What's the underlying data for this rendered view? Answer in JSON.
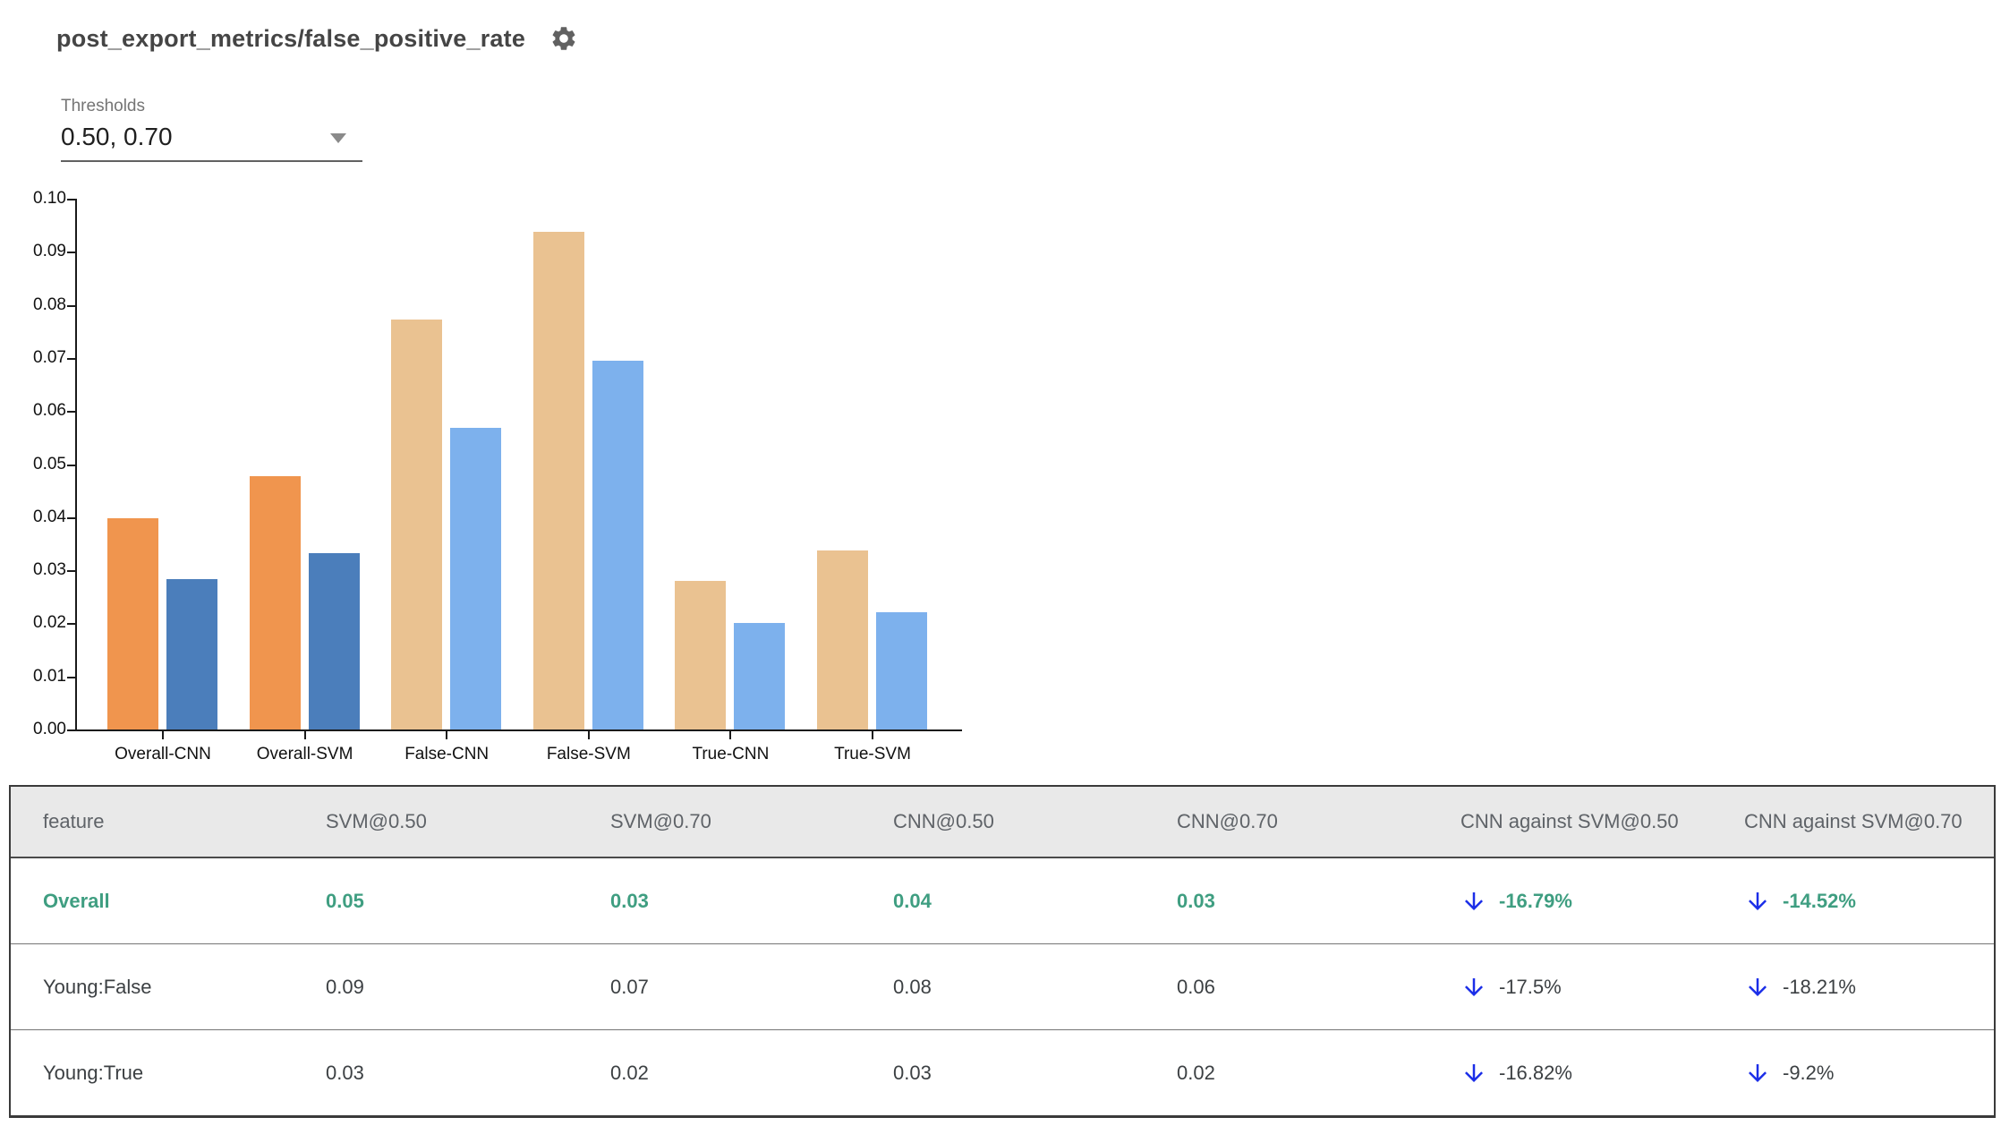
{
  "header": {
    "title": "post_export_metrics/false_positive_rate"
  },
  "icons": {
    "settings": "gear-icon ⚙",
    "caret_down": "caret-down-icon ▼",
    "delta_down": "arrow-down-icon ↓"
  },
  "thresholds": {
    "label": "Thresholds",
    "value": "0.50, 0.70"
  },
  "colors": {
    "orange_strong": "#F0954E",
    "blue_strong": "#4B7EBB",
    "orange_light": "#EAC291",
    "blue_light": "#7DB1ED",
    "highlight_green": "#3F9E81",
    "arrow_blue": "#1B2EE8",
    "header_bg": "#E9E9E9",
    "header_text": "#5F6368",
    "body_text": "#3C4043"
  },
  "chart_data": {
    "type": "bar",
    "title": "",
    "xlabel": "",
    "ylabel": "",
    "ylim": [
      0.0,
      0.1
    ],
    "ytick_step": 0.01,
    "grid": false,
    "legend": "none",
    "categories": [
      "Overall-CNN",
      "Overall-SVM",
      "False-CNN",
      "False-SVM",
      "True-CNN",
      "True-SVM"
    ],
    "series": [
      {
        "name": "threshold 0.50",
        "values": [
          0.0398,
          0.0477,
          0.0773,
          0.0938,
          0.028,
          0.0337
        ]
      },
      {
        "name": "threshold 0.70",
        "values": [
          0.0283,
          0.0332,
          0.0568,
          0.0695,
          0.0201,
          0.0221
        ]
      }
    ],
    "bar_colors": [
      [
        "#F0954E",
        "#4B7EBB"
      ],
      [
        "#F0954E",
        "#4B7EBB"
      ],
      [
        "#EAC291",
        "#7DB1ED"
      ],
      [
        "#EAC291",
        "#7DB1ED"
      ],
      [
        "#EAC291",
        "#7DB1ED"
      ],
      [
        "#EAC291",
        "#7DB1ED"
      ]
    ]
  },
  "table": {
    "columns": [
      "feature",
      "SVM@0.50",
      "SVM@0.70",
      "CNN@0.50",
      "CNN@0.70",
      "CNN against SVM@0.50",
      "CNN against SVM@0.70"
    ],
    "rows": [
      {
        "feature": "Overall",
        "values": [
          "0.05",
          "0.03",
          "0.04",
          "0.03"
        ],
        "deltas": [
          "-16.79%",
          "-14.52%"
        ],
        "highlight": true
      },
      {
        "feature": "Young:False",
        "values": [
          "0.09",
          "0.07",
          "0.08",
          "0.06"
        ],
        "deltas": [
          "-17.5%",
          "-18.21%"
        ],
        "highlight": false
      },
      {
        "feature": "Young:True",
        "values": [
          "0.03",
          "0.02",
          "0.03",
          "0.02"
        ],
        "deltas": [
          "-16.82%",
          "-9.2%"
        ],
        "highlight": false
      }
    ]
  }
}
